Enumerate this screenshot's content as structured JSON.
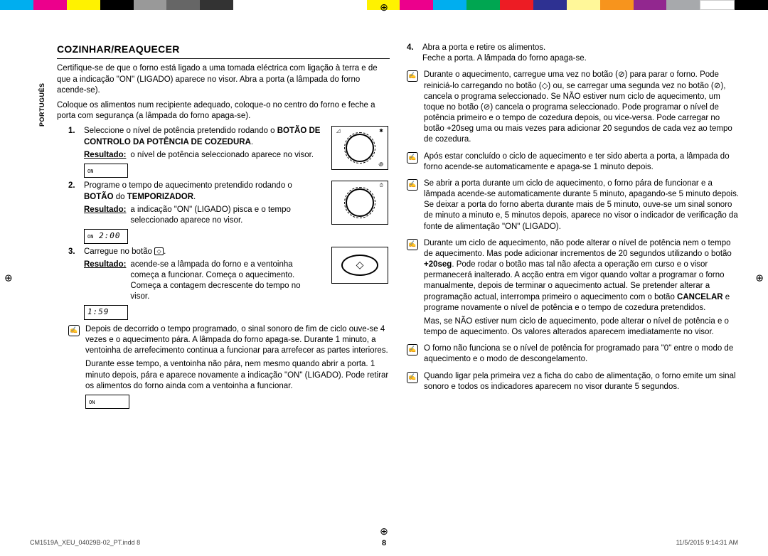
{
  "colorbar": {
    "left": [
      "#00aeef",
      "#ec008c",
      "#fff200",
      "#000000",
      "#999999",
      "#666666",
      "#333333"
    ],
    "right": [
      "#fff200",
      "#ec008c",
      "#00aeef",
      "#00a651",
      "#ed1c24",
      "#2e3192",
      "#fff799",
      "#f7941d",
      "#92278f",
      "#a7a9ac",
      "#ffffff",
      "#000000"
    ]
  },
  "lang_tab": "PORTUGUÊS",
  "title": "COZINHAR/REAQUECER",
  "intro1": "Certifique-se de que o forno está ligado a uma tomada eléctrica com ligação à terra e de que a indicação \"ON\" (LIGADO) aparece no visor. Abra a porta (a lâmpada do forno acende-se).",
  "intro2": "Coloque os alimentos num recipiente adequado, coloque-o no centro do forno e feche a porta com segurança (a lâmpada do forno apaga-se).",
  "step1": {
    "num": "1.",
    "text_a": "Seleccione o nível de potência pretendido rodando o ",
    "bold": "BOTÃO DE CONTROLO DA POTÊNCIA DE COZEDURA",
    "result_label": "Resultado:",
    "result_text": "o nível de potência seleccionado aparece no visor.",
    "display": "ON"
  },
  "step2": {
    "num": "2.",
    "text_a": "Programe o tempo de aquecimento pretendido rodando o ",
    "bold1": "BOTÃO",
    "mid": " do ",
    "bold2": "TEMPORIZADOR",
    "result_label": "Resultado:",
    "result_text": "a indicação \"ON\" (LIGADO) pisca e o tempo seleccionado aparece no visor.",
    "display": "2:00"
  },
  "step3": {
    "num": "3.",
    "text": "Carregue no botão ",
    "result_label": "Resultado:",
    "result_text": "acende-se a lâmpada do forno e a ventoinha começa a funcionar. Começa o aquecimento. Começa a contagem decrescente do tempo no visor.",
    "display": "1:59"
  },
  "note_left": {
    "p1": "Depois de decorrido o tempo programado, o sinal sonoro de fim de ciclo ouve-se 4 vezes e o aquecimento pára. A lâmpada do forno apaga-se. Durante 1 minuto, a ventoinha de arrefecimento continua a funcionar para arrefecer as partes interiores.",
    "p2": "Durante esse tempo, a ventoinha não pára, nem mesmo quando abrir a porta. 1 minuto depois, pára e aparece novamente a indicação \"ON\" (LIGADO). Pode retirar os alimentos do forno ainda com a ventoinha a funcionar.",
    "display": "ON"
  },
  "step4": {
    "num": "4.",
    "l1": "Abra a porta e retire os alimentos.",
    "l2": "Feche a porta. A lâmpada do forno apaga-se."
  },
  "rnotes": [
    {
      "t": "Durante o aquecimento, carregue uma vez no botão (⊘) para parar o forno. Pode reiniciá-lo carregando no botão (◇) ou, se carregar uma segunda vez no botão (⊘), cancela o programa seleccionado. Se NÃO estiver num ciclo de aquecimento, um toque no botão (⊘) cancela o programa seleccionado. Pode programar o nível de potência primeiro e o tempo de cozedura depois, ou vice-versa. Pode carregar no botão +20seg uma ou mais vezes para adicionar 20 segundos de cada vez ao tempo de cozedura."
    },
    {
      "t": "Após estar concluído o ciclo de aquecimento e ter sido aberta a porta, a lâmpada do forno acende-se automaticamente e apaga-se 1 minuto depois."
    },
    {
      "t": "Se abrir a porta durante um ciclo de aquecimento, o forno pára de funcionar e a lâmpada acende-se automaticamente durante 5 minuto, apagando-se 5 minuto depois. Se deixar a porta do forno aberta durante mais de 5 minuto, ouve-se um sinal sonoro de minuto a minuto e, 5 minutos depois, aparece no visor o indicador de verificação da fonte de alimentação \"ON\" (LIGADO)."
    },
    {
      "t_pre": "Durante um ciclo de aquecimento, não pode alterar o nível de potência nem o tempo de aquecimento. Mas pode adicionar incrementos de 20 segundos utilizando o botão ",
      "bold1": "+20seg",
      "t_mid": ". Pode rodar o botão mas tal não afecta a operação em curso e o visor permanecerá inalterado. A acção entra em vigor quando voltar a programar o forno manualmente, depois de terminar o aquecimento actual. Se pretender alterar a programação actual, interrompa primeiro o aquecimento com o botão ",
      "bold2": "CANCELAR",
      "t_post": " e programe novamente o nível de potência e o tempo de cozedura pretendidos.",
      "t_extra": "Mas, se NÃO estiver num ciclo de aquecimento, pode alterar o nível de potência e o tempo de aquecimento. Os valores alterados aparecem imediatamente no visor."
    },
    {
      "t": "O forno não funciona se o nível de potência for programado para \"0\" entre o modo de aquecimento e o modo de descongelamento."
    },
    {
      "t": "Quando ligar pela primeira vez a ficha do cabo de alimentação, o forno emite um sinal sonoro e todos os indicadores aparecem no visor durante 5 segundos."
    }
  ],
  "page_num": "8",
  "footer_left": "CM1519A_XEU_04029B-02_PT.indd   8",
  "footer_right": "11/5/2015   9:14:31 AM"
}
